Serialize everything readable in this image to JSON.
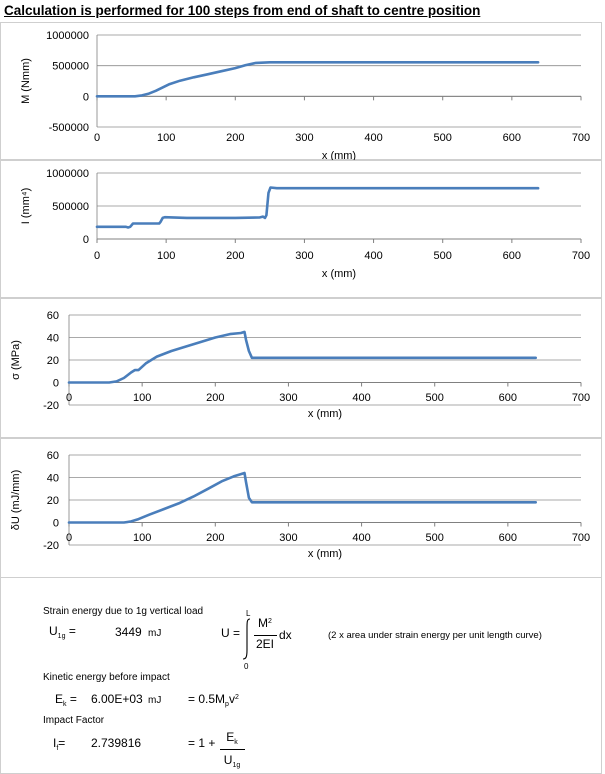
{
  "heading": "Calculation is performed for 100 steps from end of shaft to centre position",
  "colors": {
    "series": "#4a7ebb",
    "grid": "#8c8c8c",
    "axis": "#808080"
  },
  "chart_data": [
    {
      "type": "line",
      "ylabel": "M (Nmm)",
      "xlabel": "x (mm)",
      "xlim": [
        0,
        700
      ],
      "ylim": [
        -500000,
        1000000
      ],
      "xticks": [
        0,
        100,
        200,
        300,
        400,
        500,
        600,
        700
      ],
      "yticks": [
        -500000,
        0,
        500000,
        1000000
      ],
      "ytick_labels": [
        "-500000",
        "0",
        "500000",
        "1000000"
      ],
      "x": [
        0,
        55,
        65,
        75,
        85,
        95,
        105,
        120,
        140,
        160,
        180,
        200,
        215,
        230,
        250,
        300,
        400,
        500,
        600,
        638
      ],
      "y": [
        0,
        0,
        15000,
        45000,
        90000,
        145000,
        200000,
        255000,
        310000,
        360000,
        410000,
        460000,
        510000,
        545000,
        555000,
        555000,
        555000,
        555000,
        555000,
        555000
      ]
    },
    {
      "type": "line",
      "ylabel": "I (mm⁴)",
      "xlabel": "x (mm)",
      "xlim": [
        0,
        700
      ],
      "ylim": [
        0,
        1000000
      ],
      "xticks": [
        0,
        100,
        200,
        300,
        400,
        500,
        600,
        700
      ],
      "yticks": [
        0,
        500000,
        1000000
      ],
      "ytick_labels": [
        "0",
        "500000",
        "1000000"
      ],
      "x": [
        0,
        42,
        45,
        48,
        52,
        90,
        92,
        95,
        98,
        130,
        200,
        235,
        240,
        243,
        245,
        248,
        251,
        260,
        300,
        400,
        500,
        600,
        638
      ],
      "y": [
        185000,
        185000,
        175000,
        185000,
        235000,
        235000,
        260000,
        320000,
        330000,
        320000,
        320000,
        325000,
        340000,
        320000,
        360000,
        700000,
        780000,
        770000,
        770000,
        770000,
        770000,
        770000,
        770000
      ]
    },
    {
      "type": "line",
      "ylabel": "σ (MPa)",
      "xlabel": "x (mm)",
      "xlim": [
        0,
        700
      ],
      "ylim": [
        -20,
        60
      ],
      "xticks": [
        0,
        100,
        200,
        300,
        400,
        500,
        600,
        700
      ],
      "yticks": [
        -20,
        0,
        20,
        40,
        60
      ],
      "ytick_labels": [
        "-20",
        "0",
        "20",
        "40",
        "60"
      ],
      "x": [
        0,
        55,
        65,
        75,
        85,
        90,
        95,
        105,
        120,
        140,
        160,
        180,
        200,
        220,
        235,
        240,
        242,
        246,
        250,
        260,
        300,
        400,
        500,
        600,
        638
      ],
      "y": [
        0,
        0,
        1,
        4,
        9,
        11,
        11,
        17,
        23,
        28,
        32,
        36,
        40,
        43,
        44,
        45,
        38,
        28,
        22,
        22,
        22,
        22,
        22,
        22,
        22
      ]
    },
    {
      "type": "line",
      "ylabel": "δU (mJ/mm)",
      "xlabel": "x (mm)",
      "xlim": [
        0,
        700
      ],
      "ylim": [
        -20,
        60
      ],
      "xticks": [
        0,
        100,
        200,
        300,
        400,
        500,
        600,
        700
      ],
      "yticks": [
        -20,
        0,
        20,
        40,
        60
      ],
      "ytick_labels": [
        "-20",
        "0",
        "20",
        "40",
        "60"
      ],
      "x": [
        0,
        75,
        85,
        95,
        110,
        130,
        150,
        170,
        190,
        210,
        225,
        235,
        240,
        242,
        246,
        250,
        260,
        300,
        400,
        500,
        600,
        638
      ],
      "y": [
        0,
        0,
        1,
        3,
        7,
        12,
        17,
        23,
        30,
        37,
        41,
        43,
        44,
        36,
        22,
        18,
        18,
        18,
        18,
        18,
        18,
        18
      ]
    }
  ],
  "calc": {
    "strain_title": "Strain energy due to 1g vertical load",
    "u_sym": "U",
    "u_sub": "1g",
    "u_eq": "=",
    "u_value": "3449",
    "u_unit": "mJ",
    "int_lhs": "U =",
    "int_upper": "L",
    "int_lower": "0",
    "int_num": "M",
    "int_num_sup": "2",
    "int_den": "2EI",
    "int_dx": "dx",
    "int_note": "(2 x area under strain energy per unit length curve)",
    "ke_title": "Kinetic energy before impact",
    "ek_sym": "E",
    "ek_sub": "k",
    "ek_eq": "=",
    "ek_value": "6.00E+03",
    "ek_unit": "mJ",
    "ek_formula": "= 0.5M",
    "ek_formula_sub": "p",
    "ek_formula_v": "v",
    "ek_formula_sup": "2",
    "if_title": "Impact Factor",
    "if_sym": "I",
    "if_sub": "f",
    "if_eq": "=",
    "if_value": "2.739816",
    "if_formula": "= 1 +",
    "if_num": "E",
    "if_num_sub": "k",
    "if_den": "U",
    "if_den_sub": "1g"
  }
}
